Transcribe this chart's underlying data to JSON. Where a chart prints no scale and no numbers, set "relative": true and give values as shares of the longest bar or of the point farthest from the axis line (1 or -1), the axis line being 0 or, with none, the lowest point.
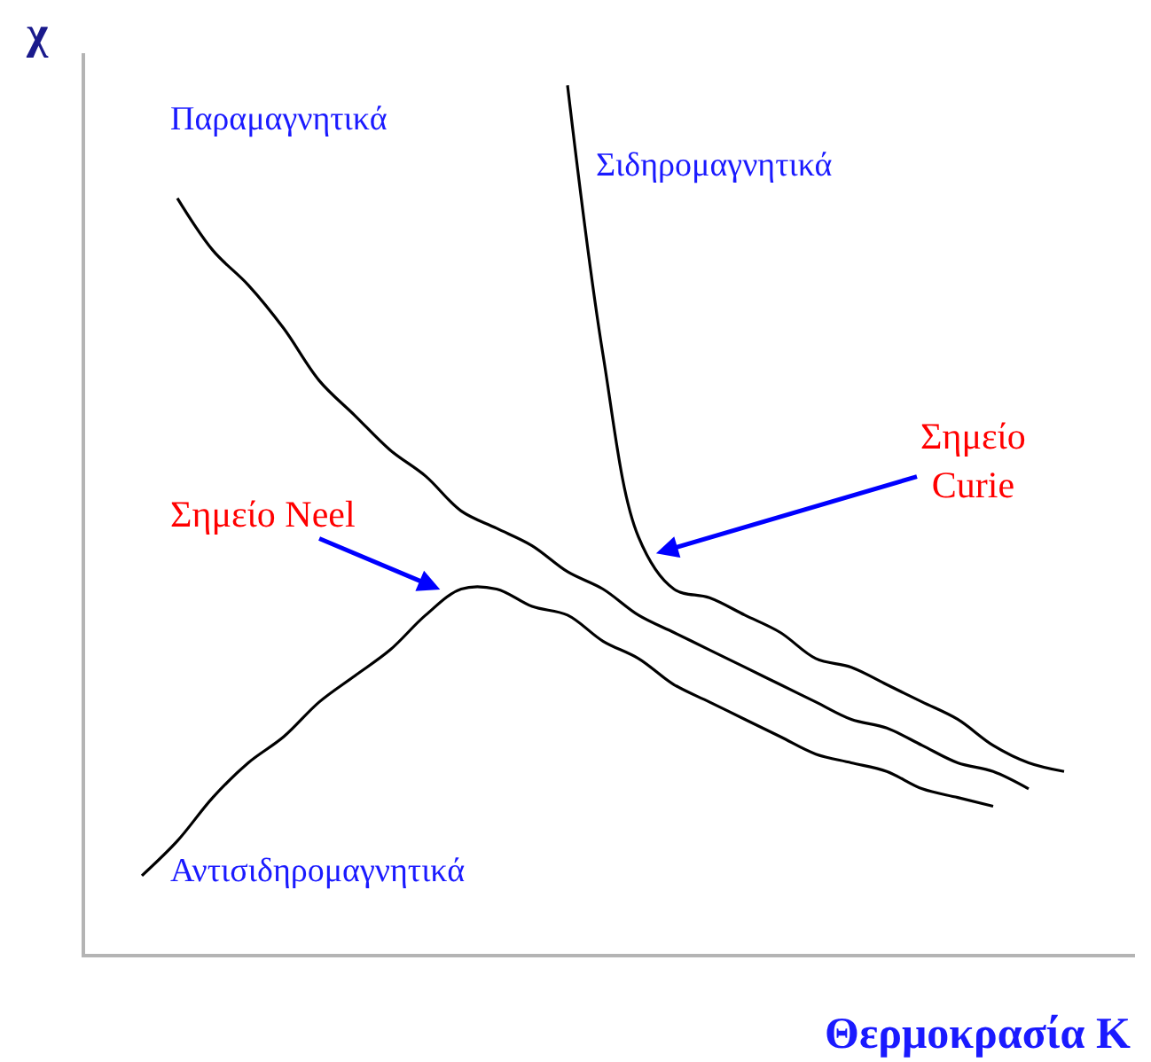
{
  "chart_data": {
    "type": "line",
    "relative": true,
    "xlabel": "Θερμοκρασία K",
    "ylabel": "χ",
    "categories": [
      null,
      null,
      null,
      null,
      null,
      null,
      null,
      null,
      null,
      null,
      null,
      null,
      null,
      null,
      null,
      null,
      null,
      null,
      null,
      null,
      null,
      null,
      null,
      null,
      null,
      null,
      null
    ],
    "series": [
      {
        "name": "Παραμαγνητικά",
        "color": "#000000",
        "values": [
          null,
          0.87,
          0.81,
          0.77,
          0.72,
          0.66,
          0.62,
          0.58,
          0.55,
          0.51,
          0.49,
          0.47,
          0.44,
          0.42,
          0.39,
          0.37,
          0.35,
          0.33,
          0.31,
          0.29,
          0.27,
          0.26,
          0.24,
          0.22,
          0.21,
          0.19,
          null
        ]
      },
      {
        "name": "Σιδηρομαγνητικά",
        "color": "#000000",
        "values": [
          null,
          null,
          null,
          null,
          null,
          null,
          null,
          null,
          null,
          null,
          null,
          null,
          1.0,
          0.69,
          0.48,
          0.42,
          0.41,
          0.39,
          0.37,
          0.34,
          0.33,
          0.31,
          0.29,
          0.27,
          0.24,
          0.22,
          0.21
        ]
      },
      {
        "name": "Αντισιδηρομαγνητικά",
        "color": "#000000",
        "values": [
          0.09,
          0.13,
          0.18,
          0.22,
          0.25,
          0.29,
          0.32,
          0.35,
          0.39,
          0.42,
          0.42,
          0.4,
          0.39,
          0.36,
          0.34,
          0.31,
          0.29,
          0.27,
          0.25,
          0.23,
          0.22,
          0.21,
          0.19,
          0.18,
          0.17,
          null,
          null
        ]
      }
    ],
    "annotations": [
      "Σημείο Neel",
      "Σημείο Curie"
    ]
  }
}
